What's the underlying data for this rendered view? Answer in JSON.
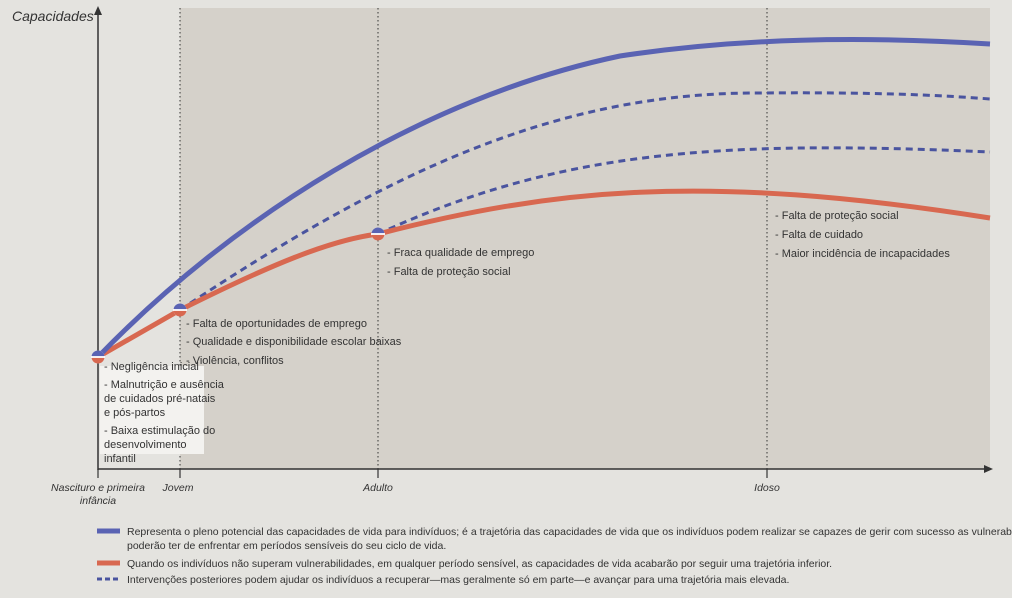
{
  "colors": {
    "full_potential": "#5a63b3",
    "inferior": "#d86850",
    "intervention": "#4a549f",
    "background": "#e4e3df",
    "panel": "#d5d1ca",
    "axis": "#333333"
  },
  "y_axis_label": "Capacidades",
  "stages": [
    {
      "id": "birth",
      "lines": [
        "Nascituro e primeira",
        "infância"
      ]
    },
    {
      "id": "young",
      "lines": [
        "Jovem"
      ]
    },
    {
      "id": "adult",
      "lines": [
        "Adulto"
      ]
    },
    {
      "id": "elderly",
      "lines": [
        "Idoso"
      ]
    }
  ],
  "notes": {
    "birth": [
      [
        "- Negligência inicial"
      ],
      [
        "- Malnutrição e ausência",
        "de cuidados pré-natais",
        "e pós-partos"
      ],
      [
        "- Baixa estimulação do",
        "desenvolvimento",
        "infantil"
      ]
    ],
    "young": [
      [
        "- Falta de oportunidades de emprego"
      ],
      [
        "- Qualidade e disponibilidade escolar baixas"
      ],
      [
        "- Violência, conflitos"
      ]
    ],
    "adult": [
      [
        "- Fraca qualidade de emprego"
      ],
      [
        "- Falta de proteção social"
      ]
    ],
    "elderly": [
      [
        "- Falta de proteção social"
      ],
      [
        "- Falta de cuidado"
      ],
      [
        "- Maior incidência de incapacidades"
      ]
    ]
  },
  "legend": [
    {
      "style": "solid-blue",
      "lines": [
        "Representa o pleno potencial das capacidades de vida para indivíduos; é a trajetória das capacidades de vida que os indivíduos podem realizar se capazes de gerir com sucesso as vulnerabilidades que",
        "poderão ter de enfrentar em períodos sensíveis do seu ciclo de vida."
      ]
    },
    {
      "style": "solid-red",
      "lines": [
        "Quando os indivíduos não superam vulnerabilidades, em qualquer período sensível, as capacidades de vida acabarão por seguir uma trajetória inferior."
      ]
    },
    {
      "style": "dashed-blue",
      "lines": [
        "Intervenções posteriores podem ajudar os indivíduos a recuperar—mas geralmente só em parte—e avançar para uma trajetória mais elevada."
      ]
    }
  ]
}
